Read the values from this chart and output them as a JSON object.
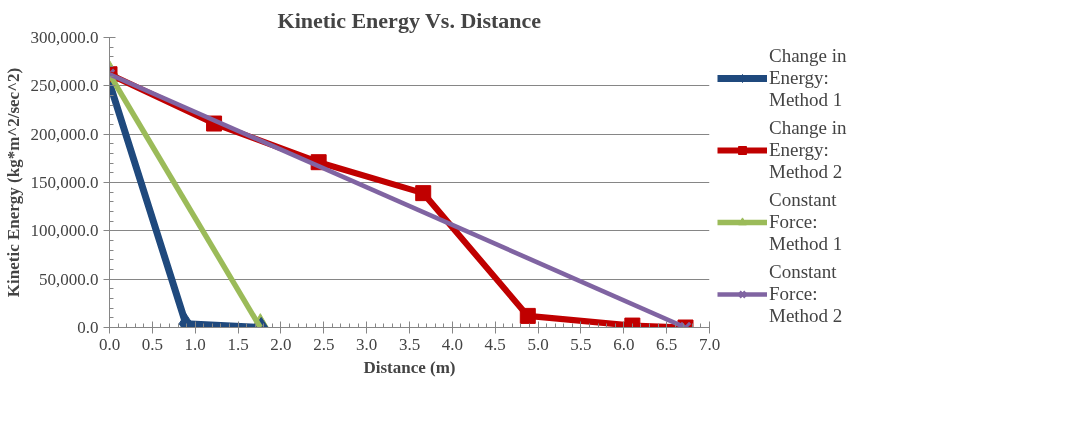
{
  "chart_data": {
    "type": "line",
    "title": "Kinetic Energy Vs. Distance",
    "xlabel": "Distance (m)",
    "ylabel": "Kinetic Energy (kg*m^2/sec^2)",
    "xlim": [
      0,
      7
    ],
    "ylim": [
      0,
      300000
    ],
    "xticks": [
      {
        "value": 0,
        "label": "0.0"
      },
      {
        "value": 0.5,
        "label": "0.5"
      },
      {
        "value": 1,
        "label": "1.0"
      },
      {
        "value": 1.5,
        "label": "1.5"
      },
      {
        "value": 2,
        "label": "2.0"
      },
      {
        "value": 2.5,
        "label": "2.5"
      },
      {
        "value": 3,
        "label": "3.0"
      },
      {
        "value": 3.5,
        "label": "3.5"
      },
      {
        "value": 4,
        "label": "4.0"
      },
      {
        "value": 4.5,
        "label": "4.5"
      },
      {
        "value": 5,
        "label": "5.0"
      },
      {
        "value": 5.5,
        "label": "5.5"
      },
      {
        "value": 6,
        "label": "6.0"
      },
      {
        "value": 6.5,
        "label": "6.5"
      },
      {
        "value": 7,
        "label": "7.0"
      }
    ],
    "yticks": [
      {
        "value": 0,
        "label": "0.0"
      },
      {
        "value": 50000,
        "label": "50,000.0"
      },
      {
        "value": 100000,
        "label": "100,000.0"
      },
      {
        "value": 150000,
        "label": "150,000.0"
      },
      {
        "value": 200000,
        "label": "200,000.0"
      },
      {
        "value": 250000,
        "label": "250,000.0"
      },
      {
        "value": 300000,
        "label": "300,000.0"
      }
    ],
    "grid": "y",
    "legend": "right",
    "line_style": "solid",
    "series": [
      {
        "name": "Change in Energy: Method 1",
        "color": "#1f497d",
        "marker": "diamond",
        "x": [
          0,
          0.89,
          1.77
        ],
        "values": [
          253000,
          4000,
          0
        ]
      },
      {
        "name": "Change in Energy: Method 2",
        "color": "#c00000",
        "marker": "square",
        "x": [
          0,
          1.22,
          2.44,
          3.66,
          4.88,
          6.1,
          6.72
        ],
        "values": [
          262000,
          211000,
          171000,
          139000,
          12000,
          2000,
          0
        ]
      },
      {
        "name": "Constant Force: Method 1",
        "color": "#9bbb59",
        "marker": "triangle",
        "x": [
          0,
          1.76
        ],
        "values": [
          262000,
          0
        ]
      },
      {
        "name": "Constant Force: Method 2",
        "color": "#8064a2",
        "marker": "cross",
        "x": [
          0,
          6.72
        ],
        "values": [
          262000,
          0
        ]
      }
    ]
  }
}
